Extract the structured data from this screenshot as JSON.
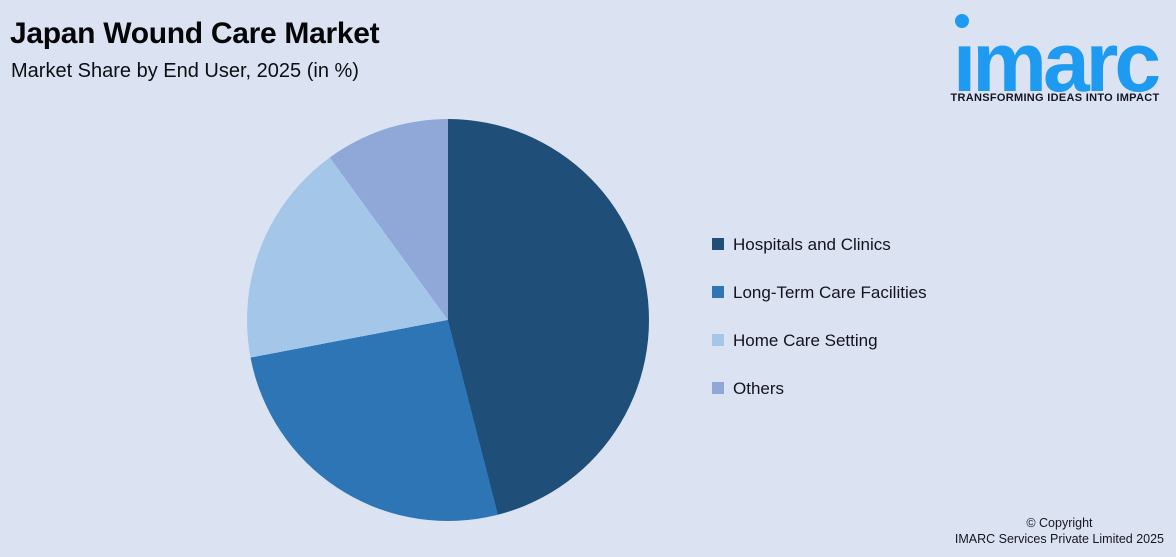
{
  "background_color": "#dbe3f3",
  "header": {
    "title": "Japan Wound Care Market",
    "subtitle": "Market Share by End User, 2025 (in %)"
  },
  "logo": {
    "brand": "imarc",
    "tagline": "TRANSFORMING IDEAS INTO IMPACT",
    "brand_color": "#1e9bf0"
  },
  "chart_data": {
    "type": "pie",
    "title": "Japan Wound Care Market",
    "subtitle": "Market Share by End User, 2025 (in %)",
    "categories": [
      "Hospitals and Clinics",
      "Long-Term Care Facilities",
      "Home Care Setting",
      "Others"
    ],
    "values": [
      46,
      26,
      18,
      10
    ],
    "unit": "%",
    "colors": [
      "#1f4e79",
      "#2e75b6",
      "#a4c7e9",
      "#8fa8d8"
    ],
    "start_angle_deg": 0,
    "direction": "clockwise",
    "legend_position": "right",
    "data_labels": false
  },
  "footer": {
    "copyright_line1": "© Copyright",
    "copyright_line2": "IMARC Services Private Limited 2025"
  }
}
